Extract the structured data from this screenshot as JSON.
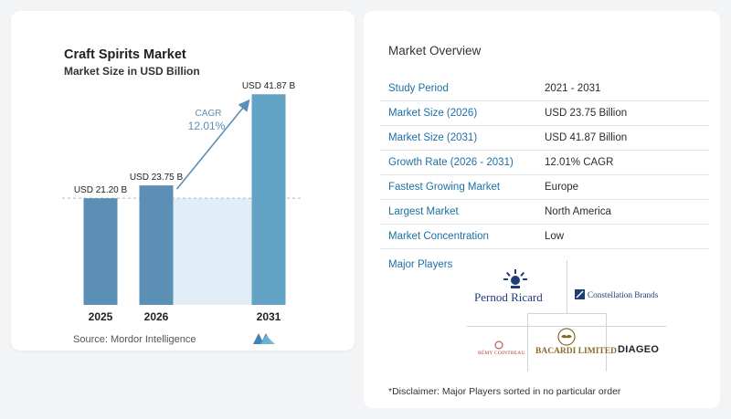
{
  "chart_header": {
    "title": "Craft Spirits Market",
    "subtitle": "Market Size in USD Billion"
  },
  "chart_data": {
    "type": "bar",
    "title": "Craft Spirits Market",
    "subtitle": "Market Size in USD Billion",
    "categories": [
      "2025",
      "2026",
      "2031"
    ],
    "values": [
      21.2,
      23.75,
      41.87
    ],
    "value_labels": [
      "USD 21.20 B",
      "USD 23.75 B",
      "USD 41.87 B"
    ],
    "ylim": [
      0,
      45
    ],
    "cagr_label": "CAGR",
    "cagr_value": "12.01%",
    "bar_colors": [
      "#5b8fb5",
      "#5b8fb5",
      "#63a3c6"
    ],
    "grid": false,
    "legend": "none"
  },
  "source": "Source:  Mordor Intelligence",
  "overview": {
    "title": "Market Overview",
    "rows": [
      {
        "label": "Study Period",
        "value": "2021 - 2031"
      },
      {
        "label": "Market Size (2026)",
        "value": "USD 23.75 Billion"
      },
      {
        "label": "Market Size (2031)",
        "value": "USD 41.87 Billion"
      },
      {
        "label": "Growth Rate (2026 - 2031)",
        "value": "12.01% CAGR"
      },
      {
        "label": "Fastest Growing Market",
        "value": "Europe"
      },
      {
        "label": "Largest Market",
        "value": "North America"
      },
      {
        "label": "Market Concentration",
        "value": "Low"
      }
    ]
  },
  "players": {
    "label": "Major Players",
    "logos": [
      "Pernod Ricard",
      "Constellation Brands",
      "RÉMY COINTREAU",
      "BACARDI LIMITED",
      "DIAGEO"
    ]
  },
  "disclaimer": "*Disclaimer: Major Players sorted in no particular order",
  "colors": {
    "accent": "#1d6fa5",
    "bar": "#5b8fb5",
    "arrow": "#5b8fb5",
    "dashed_line": "#b0b8c0"
  }
}
